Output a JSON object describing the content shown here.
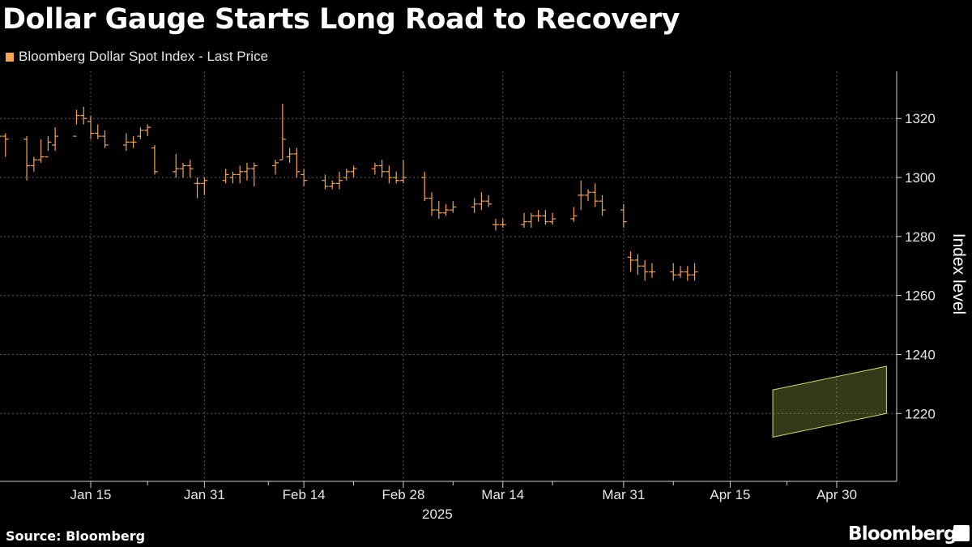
{
  "title": "Dollar Gauge Starts Long Road to Recovery",
  "legend": {
    "label": "Bloomberg Dollar Spot Index - Last Price",
    "color": "#f7a44e"
  },
  "source": "Source: Bloomberg",
  "brand": "Bloomberg",
  "chart_data": {
    "type": "bar",
    "style": "OHLC price bars",
    "title": "Dollar Gauge Starts Long Road to Recovery",
    "ylabel": "Index level",
    "xlabel": "2025",
    "ylim": [
      1197,
      1336
    ],
    "yticks": [
      1220,
      1240,
      1260,
      1280,
      1300,
      1320
    ],
    "xticks": [
      "Jan 15",
      "Jan 31",
      "Feb 14",
      "Feb 28",
      "Mar 14",
      "Mar 31",
      "Apr 15",
      "Apr 30"
    ],
    "x_axis_year": "2025",
    "series_color": "#f7a44e",
    "grid": true,
    "legend_position": "top-left",
    "channel_color": "#c8e06a",
    "channel": {
      "upper": {
        "from": [
          "Apr 21",
          1228
        ],
        "to": [
          "May 7",
          1236
        ]
      },
      "lower": {
        "from": [
          "Apr 21",
          1212
        ],
        "to": [
          "May 7",
          1220
        ]
      }
    },
    "series": [
      {
        "name": "Bloomberg Dollar Spot Index - Last Price",
        "ohlc_columns": [
          "date",
          "open",
          "high",
          "low",
          "close"
        ],
        "points": [
          [
            "Jan 2",
            1315,
            1316,
            1306,
            1314
          ],
          [
            "Jan 3",
            1314,
            1315,
            1307,
            1313
          ],
          [
            "Jan 6",
            1313,
            1314,
            1299,
            1304
          ],
          [
            "Jan 7",
            1304,
            1307,
            1302,
            1306
          ],
          [
            "Jan 8",
            1306,
            1313,
            1305,
            1307
          ],
          [
            "Jan 9",
            1307,
            1314,
            1309,
            1312
          ],
          [
            "Jan 10",
            1311,
            1317,
            1309,
            1314
          ],
          [
            "Jan 13",
            1314,
            1323,
            1318,
            1321
          ],
          [
            "Jan 14",
            1321,
            1324,
            1318,
            1320
          ],
          [
            "Jan 15",
            1319,
            1321,
            1313,
            1315
          ],
          [
            "Jan 16",
            1315,
            1318,
            1313,
            1314
          ],
          [
            "Jan 17",
            1314,
            1316,
            1310,
            1311
          ],
          [
            "Jan 20",
            1311,
            1315,
            1309,
            1312
          ],
          [
            "Jan 21",
            1312,
            1314,
            1310,
            1312
          ],
          [
            "Jan 22",
            1314,
            1317,
            1313,
            1316
          ],
          [
            "Jan 23",
            1316,
            1318,
            1314,
            1317
          ],
          [
            "Jan 24",
            1310,
            1311,
            1301,
            1302
          ],
          [
            "Jan 27",
            1302,
            1308,
            1300,
            1303
          ],
          [
            "Jan 28",
            1303,
            1305,
            1300,
            1304
          ],
          [
            "Jan 29",
            1304,
            1306,
            1300,
            1303
          ],
          [
            "Jan 30",
            1298,
            1300,
            1293,
            1298
          ],
          [
            "Jan 31",
            1298,
            1300,
            1294,
            1299
          ],
          [
            "Feb 3",
            1299,
            1303,
            1298,
            1301
          ],
          [
            "Feb 4",
            1300,
            1302,
            1298,
            1301
          ],
          [
            "Feb 5",
            1301,
            1304,
            1298,
            1302
          ],
          [
            "Feb 6",
            1302,
            1305,
            1299,
            1303
          ],
          [
            "Feb 7",
            1303,
            1305,
            1297,
            1304
          ],
          [
            "Feb 10",
            1304,
            1306,
            1301,
            1305
          ],
          [
            "Feb 11",
            1306,
            1325,
            1306,
            1313
          ],
          [
            "Feb 12",
            1307,
            1310,
            1305,
            1308
          ],
          [
            "Feb 13",
            1308,
            1310,
            1300,
            1302
          ],
          [
            "Feb 14",
            1301,
            1303,
            1297,
            1299
          ],
          [
            "Feb 17",
            1299,
            1301,
            1296,
            1297
          ],
          [
            "Feb 18",
            1297,
            1299,
            1296,
            1298
          ],
          [
            "Feb 19",
            1298,
            1302,
            1296,
            1299
          ],
          [
            "Feb 20",
            1300,
            1303,
            1299,
            1302
          ],
          [
            "Feb 21",
            1302,
            1304,
            1300,
            1303
          ],
          [
            "Feb 24",
            1303,
            1305,
            1301,
            1304
          ],
          [
            "Feb 25",
            1304,
            1306,
            1300,
            1302
          ],
          [
            "Feb 26",
            1302,
            1304,
            1298,
            1300
          ],
          [
            "Feb 27",
            1300,
            1302,
            1298,
            1299
          ],
          [
            "Feb 28",
            1299,
            1306,
            1298,
            1300
          ],
          [
            "Mar 3",
            1300,
            1302,
            1292,
            1293
          ],
          [
            "Mar 4",
            1293,
            1295,
            1287,
            1289
          ],
          [
            "Mar 5",
            1289,
            1292,
            1286,
            1288
          ],
          [
            "Mar 6",
            1288,
            1291,
            1287,
            1289
          ],
          [
            "Mar 7",
            1289,
            1292,
            1288,
            1290
          ],
          [
            "Mar 10",
            1290,
            1293,
            1288,
            1291
          ],
          [
            "Mar 11",
            1291,
            1295,
            1289,
            1292
          ],
          [
            "Mar 12",
            1292,
            1294,
            1290,
            1291
          ],
          [
            "Mar 13",
            1284,
            1286,
            1282,
            1284
          ],
          [
            "Mar 14",
            1284,
            1286,
            1283,
            1284
          ],
          [
            "Mar 17",
            1284,
            1288,
            1283,
            1285
          ],
          [
            "Mar 18",
            1285,
            1288,
            1283,
            1287
          ],
          [
            "Mar 19",
            1287,
            1289,
            1285,
            1287
          ],
          [
            "Mar 20",
            1287,
            1289,
            1284,
            1285
          ],
          [
            "Mar 21",
            1285,
            1288,
            1284,
            1286
          ],
          [
            "Mar 24",
            1286,
            1290,
            1285,
            1287
          ],
          [
            "Mar 25",
            1294,
            1299,
            1289,
            1294
          ],
          [
            "Mar 26",
            1294,
            1296,
            1292,
            1295
          ],
          [
            "Mar 27",
            1295,
            1298,
            1290,
            1292
          ],
          [
            "Mar 28",
            1292,
            1294,
            1287,
            1289
          ],
          [
            "Mar 31",
            1289,
            1291,
            1283,
            1285
          ],
          [
            "Apr 1",
            1273,
            1275,
            1268,
            1272
          ],
          [
            "Apr 2",
            1272,
            1274,
            1267,
            1270
          ],
          [
            "Apr 3",
            1270,
            1272,
            1265,
            1268
          ],
          [
            "Apr 4",
            1268,
            1271,
            1266,
            1268
          ],
          [
            "Apr 7",
            1268,
            1271,
            1265,
            1267
          ],
          [
            "Apr 8",
            1267,
            1270,
            1266,
            1268
          ],
          [
            "Apr 9",
            1268,
            1270,
            1265,
            1267
          ],
          [
            "Apr 10",
            1267,
            1271,
            1265,
            1268
          ]
        ]
      }
    ]
  }
}
